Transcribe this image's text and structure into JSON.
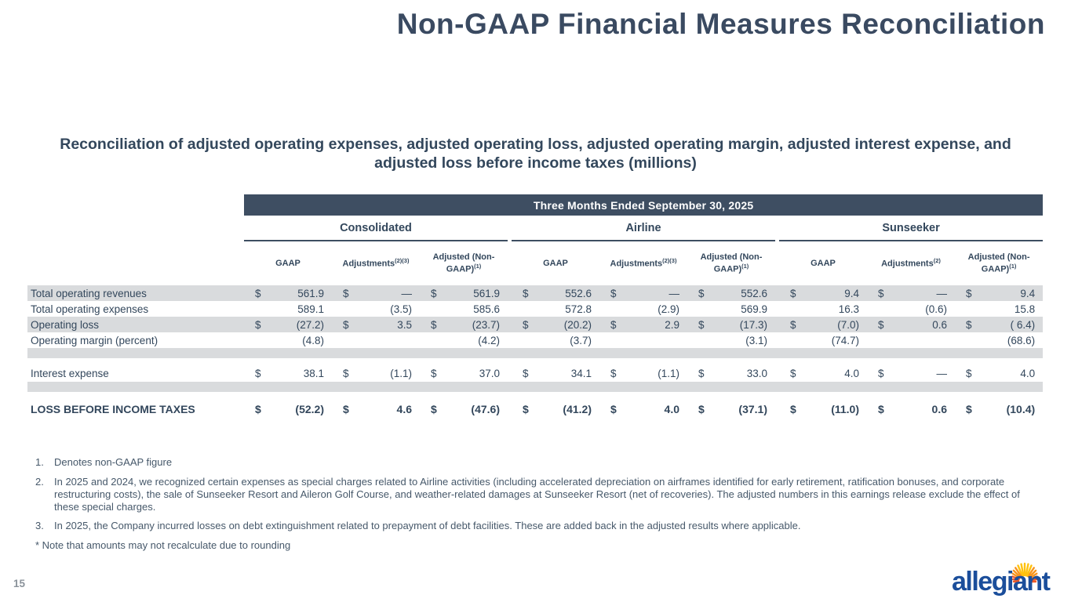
{
  "title": "Non-GAAP Financial Measures Reconciliation",
  "subtitle": "Reconciliation of adjusted operating expenses, adjusted operating loss, adjusted operating margin, adjusted interest expense, and adjusted loss before income taxes (millions)",
  "page_number": "15",
  "logo_text": "allegiant",
  "colors": {
    "band_bg": "#3e4e62",
    "stripe_bg": "#d9dbdd",
    "text": "#33475c",
    "logo_blue": "#1b4e9b",
    "sunburst_yellow": "#ffc20e",
    "sunburst_orange": "#f7941d",
    "sunburst_red": "#f05a28"
  },
  "table": {
    "period_header": "Three Months Ended September 30, 2025",
    "groups": [
      {
        "label": "Consolidated",
        "columns": [
          {
            "label": "GAAP",
            "sup": ""
          },
          {
            "label": "Adjustments",
            "sup": "(2)(3)"
          },
          {
            "label": "Adjusted (Non-GAAP)",
            "sup": "(1)"
          }
        ]
      },
      {
        "label": "Airline",
        "columns": [
          {
            "label": "GAAP",
            "sup": ""
          },
          {
            "label": "Adjustments",
            "sup": "(2)(3)"
          },
          {
            "label": "Adjusted (Non-GAAP)",
            "sup": "(1)"
          }
        ]
      },
      {
        "label": "Sunseeker",
        "columns": [
          {
            "label": "GAAP",
            "sup": ""
          },
          {
            "label": "Adjustments",
            "sup": "(2)"
          },
          {
            "label": "Adjusted (Non-GAAP)",
            "sup": "(1)"
          }
        ]
      }
    ],
    "rows": [
      {
        "variant": "data stripe",
        "label": "Total operating revenues",
        "cells": [
          [
            "$",
            "561.9"
          ],
          [
            "$",
            "—"
          ],
          [
            "$",
            "561.9"
          ],
          [
            "$",
            "552.6"
          ],
          [
            "$",
            "—"
          ],
          [
            "$",
            "552.6"
          ],
          [
            "$",
            "9.4"
          ],
          [
            "$",
            "—"
          ],
          [
            "$",
            "9.4"
          ]
        ]
      },
      {
        "variant": "data plain",
        "label": "Total operating expenses",
        "cells": [
          [
            "",
            "589.1"
          ],
          [
            "",
            "(3.5)"
          ],
          [
            "",
            "585.6"
          ],
          [
            "",
            "572.8"
          ],
          [
            "",
            "(2.9)"
          ],
          [
            "",
            "569.9"
          ],
          [
            "",
            "16.3"
          ],
          [
            "",
            "(0.6)"
          ],
          [
            "",
            "15.8"
          ]
        ]
      },
      {
        "variant": "data stripe",
        "label": "Operating loss",
        "cells": [
          [
            "$",
            "(27.2)"
          ],
          [
            "$",
            "3.5"
          ],
          [
            "$",
            "(23.7)"
          ],
          [
            "$",
            "(20.2)"
          ],
          [
            "$",
            "2.9"
          ],
          [
            "$",
            "(17.3)"
          ],
          [
            "$",
            "(7.0)"
          ],
          [
            "$",
            "0.6"
          ],
          [
            "$",
            "( 6.4)"
          ]
        ]
      },
      {
        "variant": "data plain",
        "label": "Operating margin (percent)",
        "cells": [
          [
            "",
            "(4.8)"
          ],
          [
            "",
            ""
          ],
          [
            "",
            "(4.2)"
          ],
          [
            "",
            "(3.7)"
          ],
          [
            "",
            ""
          ],
          [
            "",
            "(3.1)"
          ],
          [
            "",
            "(74.7)"
          ],
          [
            "",
            ""
          ],
          [
            "",
            "(68.6)"
          ]
        ]
      },
      {
        "variant": "spacer-gray"
      },
      {
        "variant": "spacer-white"
      },
      {
        "variant": "data interest plain",
        "label": "Interest expense",
        "cells": [
          [
            "$",
            "38.1"
          ],
          [
            "$",
            "(1.1)"
          ],
          [
            "$",
            "37.0"
          ],
          [
            "$",
            "34.1"
          ],
          [
            "$",
            "(1.1)"
          ],
          [
            "$",
            "33.0"
          ],
          [
            "$",
            "4.0"
          ],
          [
            "$",
            "—"
          ],
          [
            "$",
            "4.0"
          ]
        ]
      },
      {
        "variant": "spacer-gray"
      },
      {
        "variant": "spacer-white"
      },
      {
        "variant": "total plain",
        "label": "LOSS BEFORE INCOME TAXES",
        "cells": [
          [
            "$",
            "(52.2)"
          ],
          [
            "$",
            "4.6"
          ],
          [
            "$",
            "(47.6)"
          ],
          [
            "$",
            "(41.2)"
          ],
          [
            "$",
            "4.0"
          ],
          [
            "$",
            "(37.1)"
          ],
          [
            "$",
            "(11.0)"
          ],
          [
            "$",
            "0.6"
          ],
          [
            "$",
            "(10.4)"
          ]
        ]
      }
    ]
  },
  "footnotes": [
    {
      "num": "1.",
      "text": "Denotes non-GAAP figure"
    },
    {
      "num": "2.",
      "text": "In 2025 and 2024, we recognized certain expenses as special charges related to Airline activities (including accelerated depreciation on airframes identified for early retirement, ratification bonuses, and corporate restructuring costs), the sale of Sunseeker Resort and Aileron Golf Course, and weather-related damages at Sunseeker Resort (net of recoveries). The adjusted numbers in this earnings release exclude the effect of these special charges."
    },
    {
      "num": "3.",
      "text": "In 2025, the Company incurred losses on debt extinguishment related to prepayment of debt facilities. These are added back in the adjusted results where applicable."
    }
  ],
  "rounding_note": "* Note that amounts may not recalculate due to rounding"
}
